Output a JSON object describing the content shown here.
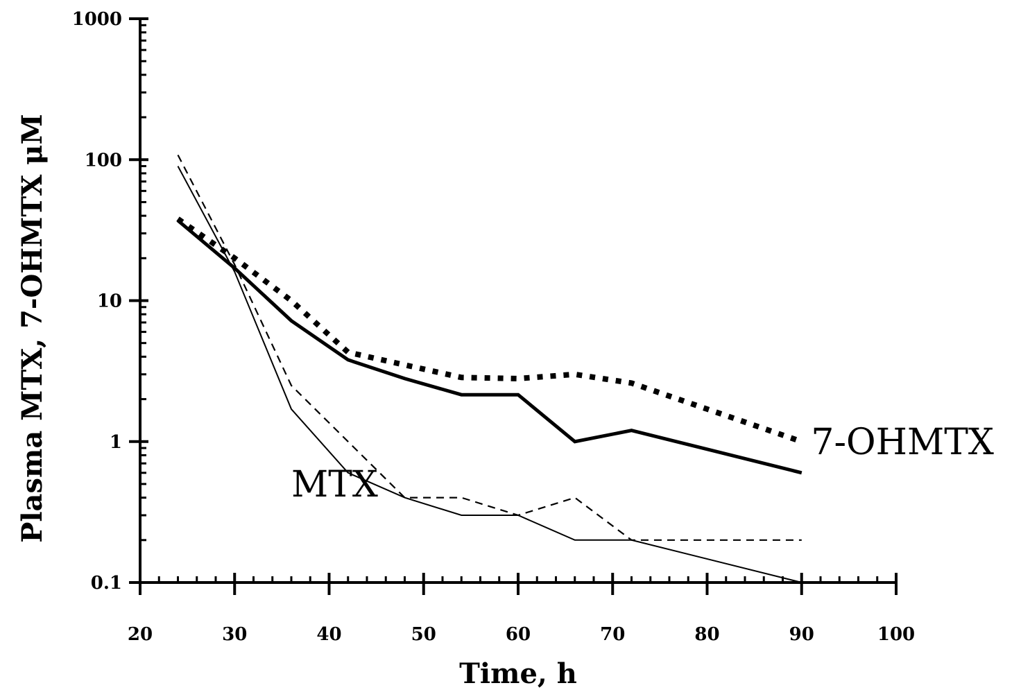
{
  "chart_data": {
    "type": "line",
    "title": "",
    "xlabel": "Time, h",
    "ylabel": "Plasma MTX, 7-OHMTX μM",
    "xlim": [
      20,
      100
    ],
    "ylim": [
      0.1,
      1000
    ],
    "y_scale": "log",
    "x_ticks": [
      20,
      30,
      40,
      50,
      60,
      70,
      80,
      90,
      100
    ],
    "y_ticks": [
      0.1,
      1,
      10,
      100,
      1000
    ],
    "x_tick_labels": [
      "20",
      "30",
      "40",
      "50",
      "60",
      "70",
      "80",
      "90",
      "100"
    ],
    "y_tick_labels": [
      "0.1",
      "1",
      "10",
      "100",
      "1000"
    ],
    "grid": false,
    "annotations": [
      {
        "text": "MTX",
        "x": 36,
        "y": 0.5
      },
      {
        "text": "7-OHMTX",
        "x": 91,
        "y": 1.0
      }
    ],
    "series": [
      {
        "style": "solid-thick",
        "x": [
          24,
          30,
          36,
          42,
          48,
          54,
          60,
          66,
          72,
          90
        ],
        "y": [
          37,
          17,
          7.2,
          3.8,
          2.8,
          2.15,
          2.15,
          1.0,
          1.2,
          0.6
        ]
      },
      {
        "style": "dotted-thick",
        "x": [
          24,
          30,
          36,
          42,
          48,
          54,
          60,
          66,
          72,
          90
        ],
        "y": [
          38,
          20,
          10,
          4.3,
          3.5,
          2.85,
          2.8,
          3.0,
          2.6,
          1.0
        ]
      },
      {
        "style": "solid-thin",
        "x": [
          24,
          30,
          36,
          42,
          48,
          54,
          60,
          66,
          72,
          90
        ],
        "y": [
          90,
          16,
          1.7,
          0.6,
          0.4,
          0.3,
          0.3,
          0.2,
          0.2,
          0.1
        ]
      },
      {
        "style": "dashed-thin",
        "x": [
          24,
          30,
          36,
          42,
          48,
          54,
          60,
          66,
          72,
          90
        ],
        "y": [
          108,
          18,
          2.5,
          1.0,
          0.4,
          0.4,
          0.3,
          0.4,
          0.2,
          0.2
        ]
      }
    ]
  }
}
